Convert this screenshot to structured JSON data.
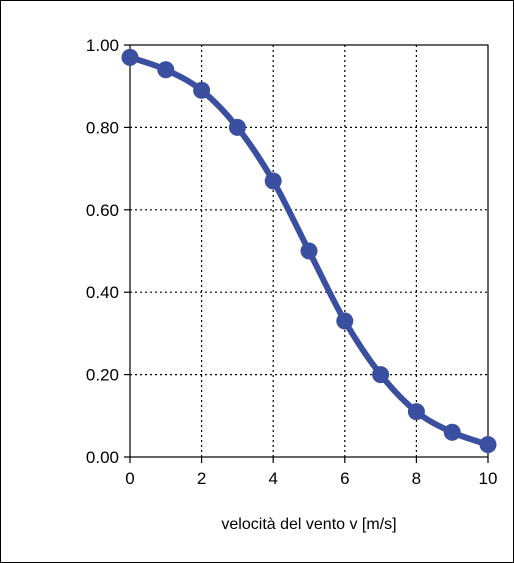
{
  "chart_data": {
    "type": "line",
    "title": "",
    "xlabel": "velocità del vento v [m/s]",
    "ylabel": "",
    "xlim": [
      0,
      10
    ],
    "ylim": [
      0,
      1
    ],
    "x_ticks": [
      0,
      2,
      4,
      6,
      8,
      10
    ],
    "x_tick_labels": [
      "0",
      "2",
      "4",
      "6",
      "8",
      "10"
    ],
    "y_ticks": [
      0,
      0.2,
      0.4,
      0.6,
      0.8,
      1.0
    ],
    "y_tick_labels": [
      "0.00",
      "0.20",
      "0.40",
      "0.60",
      "0.80",
      "1.00"
    ],
    "grid": true,
    "grid_style": "dotted",
    "legend": "none",
    "series": [
      {
        "color": "#3a4fa0",
        "marker": "circle",
        "smooth": true,
        "x": [
          0,
          1,
          2,
          3,
          4,
          5,
          6,
          7,
          8,
          9,
          10
        ],
        "values": [
          0.97,
          0.94,
          0.89,
          0.8,
          0.67,
          0.5,
          0.33,
          0.2,
          0.11,
          0.06,
          0.03
        ]
      }
    ]
  }
}
